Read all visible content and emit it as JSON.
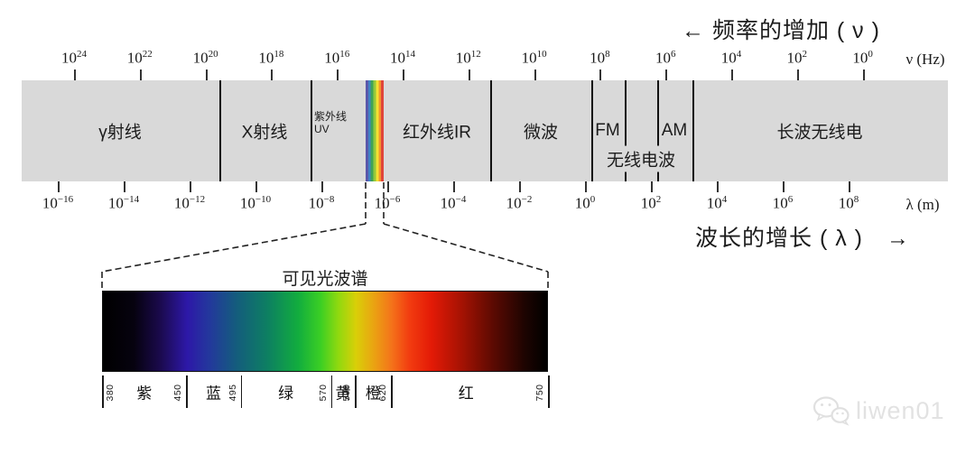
{
  "header": {
    "frequency_direction": "← 频率的增加 ( ν )",
    "wavelength_direction": "波长的增长 ( λ )　→"
  },
  "top_axis": {
    "unit": "ν (Hz)",
    "base": "10",
    "exponents": [
      24,
      22,
      20,
      18,
      16,
      14,
      12,
      10,
      8,
      6,
      4,
      2,
      0
    ]
  },
  "bottom_axis": {
    "unit": "λ (m)",
    "base": "10",
    "exponents": [
      -16,
      -14,
      -12,
      -10,
      -8,
      -6,
      -4,
      -2,
      0,
      2,
      4,
      6,
      8
    ]
  },
  "regions": [
    {
      "key": "gamma-ray",
      "label": "γ射线"
    },
    {
      "key": "x-ray",
      "label": "X射线"
    },
    {
      "key": "ultraviolet",
      "label": "紫外线",
      "sub": "UV"
    },
    {
      "key": "infrared",
      "label": "红外线IR"
    },
    {
      "key": "microwave",
      "label": "微波"
    },
    {
      "key": "fm",
      "label": "FM"
    },
    {
      "key": "am",
      "label": "AM"
    },
    {
      "key": "radio-wave",
      "label": "无线电波"
    },
    {
      "key": "longwave-radio",
      "label": "长波无线电"
    }
  ],
  "visible_spectrum": {
    "title": "可见光波谱",
    "boundaries_nm": [
      380,
      450,
      495,
      570,
      590,
      620,
      750
    ],
    "color_names": [
      "紫",
      "蓝",
      "绿",
      "黄",
      "橙",
      "红"
    ],
    "gradient_stops": [
      [
        0,
        "#000000"
      ],
      [
        7,
        "#06020f"
      ],
      [
        13,
        "#1b0a4e"
      ],
      [
        19,
        "#2d18a8"
      ],
      [
        24,
        "#23389c"
      ],
      [
        30,
        "#145c7d"
      ],
      [
        37,
        "#0d7f62"
      ],
      [
        44,
        "#12ad3e"
      ],
      [
        49,
        "#3bcf24"
      ],
      [
        53,
        "#90d90f"
      ],
      [
        57,
        "#d9cf08"
      ],
      [
        61,
        "#eaa312"
      ],
      [
        65,
        "#f4731a"
      ],
      [
        69,
        "#f23c10"
      ],
      [
        74,
        "#e31a06"
      ],
      [
        81,
        "#a31203"
      ],
      [
        88,
        "#5a0a02"
      ],
      [
        95,
        "#1d0401"
      ],
      [
        100,
        "#000000"
      ]
    ]
  },
  "strip_colors": [
    "#5b57aa",
    "#4183c4",
    "#3fa357",
    "#93c83d",
    "#f2e133",
    "#f2962e",
    "#e0453a"
  ],
  "colors": {
    "band_bg": "#d9d9d9",
    "divider": "#111111",
    "watermark": "#e2e2e2"
  },
  "watermark": {
    "text": "liwen01"
  }
}
